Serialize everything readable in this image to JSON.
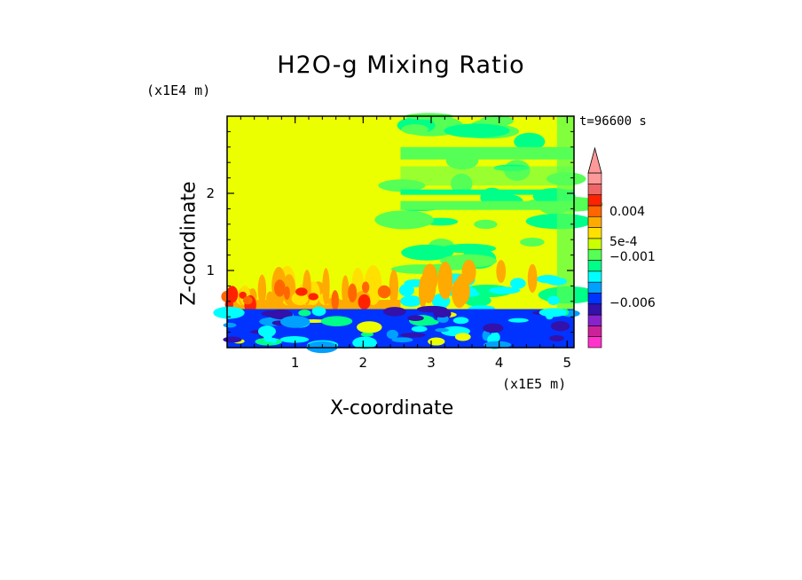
{
  "chart_data": {
    "type": "heatmap",
    "title": "H2O-g Mixing Ratio",
    "xlabel": "X-coordinate",
    "ylabel": "Z-coordinate",
    "x_unit": "(x1E5 m)",
    "y_unit": "(x1E4 m)",
    "time_label": "t=96600 s",
    "x_ticks": [
      "1",
      "2",
      "3",
      "4",
      "5"
    ],
    "y_ticks": [
      "1",
      "2"
    ],
    "xlim": [
      0,
      5.1
    ],
    "ylim": [
      0,
      3.0
    ],
    "colorbar": {
      "tick_labels": [
        "0.004",
        "5e-4",
        "−0.001",
        "−0.006"
      ],
      "colors": [
        "#ff33cc",
        "#cc2299",
        "#8822cc",
        "#3311aa",
        "#0033ff",
        "#00a0ff",
        "#00ffff",
        "#00ff88",
        "#55ff55",
        "#ccff00",
        "#ffe000",
        "#ffaa00",
        "#ff6600",
        "#ff2200",
        "#ee6666",
        "#ff9999"
      ],
      "extend": "max"
    },
    "regions": [
      {
        "x": [
          0,
          2.55
        ],
        "z": [
          1.0,
          3.0
        ],
        "value": "yellow-green (near zero)"
      },
      {
        "x": [
          0,
          2.55
        ],
        "z": [
          0.5,
          1.0
        ],
        "value": "orange-red (positive)"
      },
      {
        "x": [
          2.55,
          5.1
        ],
        "z": [
          0.5,
          3.0
        ],
        "value": "mixed yellow/green"
      },
      {
        "x": [
          0,
          5.1
        ],
        "z": [
          0,
          0.5
        ],
        "value": "blue (negative)"
      }
    ]
  }
}
